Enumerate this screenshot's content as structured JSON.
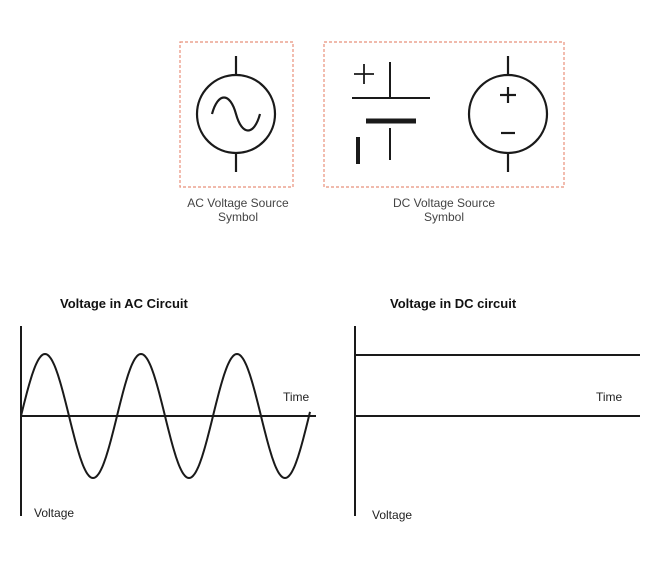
{
  "symbols": {
    "ac_caption_line1": "AC Voltage Source",
    "ac_caption_line2": "Symbol",
    "dc_caption_line1": "DC Voltage Source",
    "dc_caption_line2": "Symbol",
    "dc_plus": "+",
    "dc_minus": "–",
    "battery_plus": "+"
  },
  "graphs": {
    "ac": {
      "title": "Voltage in AC Circuit",
      "x_label": "Time",
      "y_label": "Voltage",
      "waveform": "sine",
      "cycles": 3
    },
    "dc": {
      "title": "Voltage in DC circuit",
      "x_label": "Time",
      "y_label": "Voltage",
      "waveform": "constant"
    }
  },
  "colors": {
    "line": "#1a1a1a",
    "dashed_border": "#e8907a",
    "caption": "#444444"
  }
}
